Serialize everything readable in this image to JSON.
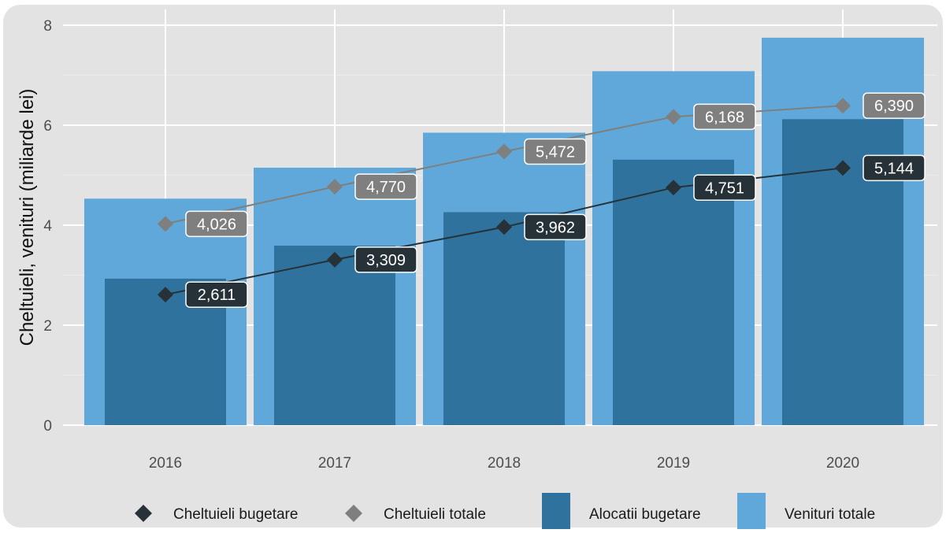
{
  "chart_data": {
    "type": "bar",
    "categories": [
      "2016",
      "2017",
      "2018",
      "2019",
      "2020"
    ],
    "ylabel": "Cheltuieli, venituri (miliarde lei)",
    "xlabel": "",
    "ylim": [
      0,
      8
    ],
    "yticks": [
      0,
      2,
      4,
      6,
      8
    ],
    "grid": true,
    "legend_position": "bottom",
    "bar_series": [
      {
        "name": "Venituri totale",
        "values": [
          4.53,
          5.15,
          5.85,
          7.08,
          7.75
        ],
        "color": "#5fa8d9"
      },
      {
        "name": "Alocatii bugetare",
        "values": [
          2.93,
          3.59,
          4.26,
          5.31,
          6.12
        ],
        "color": "#30729e"
      }
    ],
    "line_series": [
      {
        "name": "Cheltuieli totale",
        "values": [
          4.026,
          4.77,
          5.472,
          6.168,
          6.39
        ],
        "labels": [
          "4,026",
          "4,770",
          "5,472",
          "6,168",
          "6,390"
        ],
        "color": "#7f7f7f"
      },
      {
        "name": "Cheltuieli bugetare",
        "values": [
          2.611,
          3.309,
          3.962,
          4.751,
          5.144
        ],
        "labels": [
          "2,611",
          "3,309",
          "3,962",
          "4,751",
          "5,144"
        ],
        "color": "#263238"
      }
    ],
    "legend": [
      "Cheltuieli bugetare",
      "Cheltuieli totale",
      "Alocatii bugetare",
      "Venituri totale"
    ]
  }
}
